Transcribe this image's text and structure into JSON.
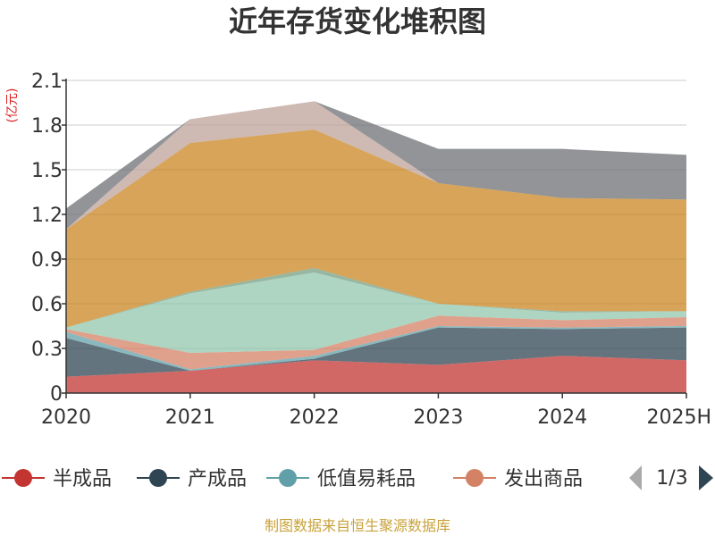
{
  "chart_data": {
    "type": "area",
    "stacked": true,
    "title": "近年存货变化堆积图",
    "unit_label": "(亿元)",
    "categories": [
      "2020",
      "2021",
      "2022",
      "2023",
      "2024",
      "2025H"
    ],
    "ylim": [
      0,
      2.1
    ],
    "yticks": [
      "0",
      "0.3",
      "0.6",
      "0.9",
      "1.2",
      "1.5",
      "1.8",
      "2.1"
    ],
    "grid": true,
    "layers": [
      {
        "name": "半成品",
        "color": "#c23531",
        "top": [
          0.11,
          0.15,
          0.22,
          0.19,
          0.25,
          0.22
        ]
      },
      {
        "name": "产成品",
        "color": "#2f4554",
        "top": [
          0.37,
          0.15,
          0.23,
          0.44,
          0.43,
          0.44
        ]
      },
      {
        "name": "低值易耗品",
        "color": "#61a0a8",
        "top": [
          0.41,
          0.16,
          0.25,
          0.45,
          0.44,
          0.45
        ]
      },
      {
        "name": "发出商品",
        "color": "#d48265",
        "top": [
          0.43,
          0.27,
          0.29,
          0.52,
          0.49,
          0.51
        ]
      },
      {
        "color": "#91c7ae",
        "top": [
          0.44,
          0.67,
          0.81,
          0.6,
          0.54,
          0.55
        ]
      },
      {
        "color": "#749f83",
        "top": [
          0.44,
          0.68,
          0.84,
          0.6,
          0.55,
          0.55
        ]
      },
      {
        "color": "#ca8622",
        "top": [
          1.1,
          1.68,
          1.77,
          1.41,
          1.31,
          1.3
        ]
      },
      {
        "color": "#bda29a",
        "top": [
          1.1,
          1.84,
          1.96,
          1.41,
          1.31,
          1.3
        ]
      },
      {
        "color": "#6e7074",
        "top": [
          1.24,
          1.84,
          1.96,
          1.64,
          1.64,
          1.6
        ]
      }
    ]
  },
  "legend": {
    "items": [
      "半成品",
      "产成品",
      "低值易耗品",
      "发出商品"
    ],
    "colors": [
      "#c23531",
      "#2f4554",
      "#61a0a8",
      "#d48265"
    ],
    "page": "1/3"
  },
  "source": "制图数据来自恒生聚源数据库"
}
